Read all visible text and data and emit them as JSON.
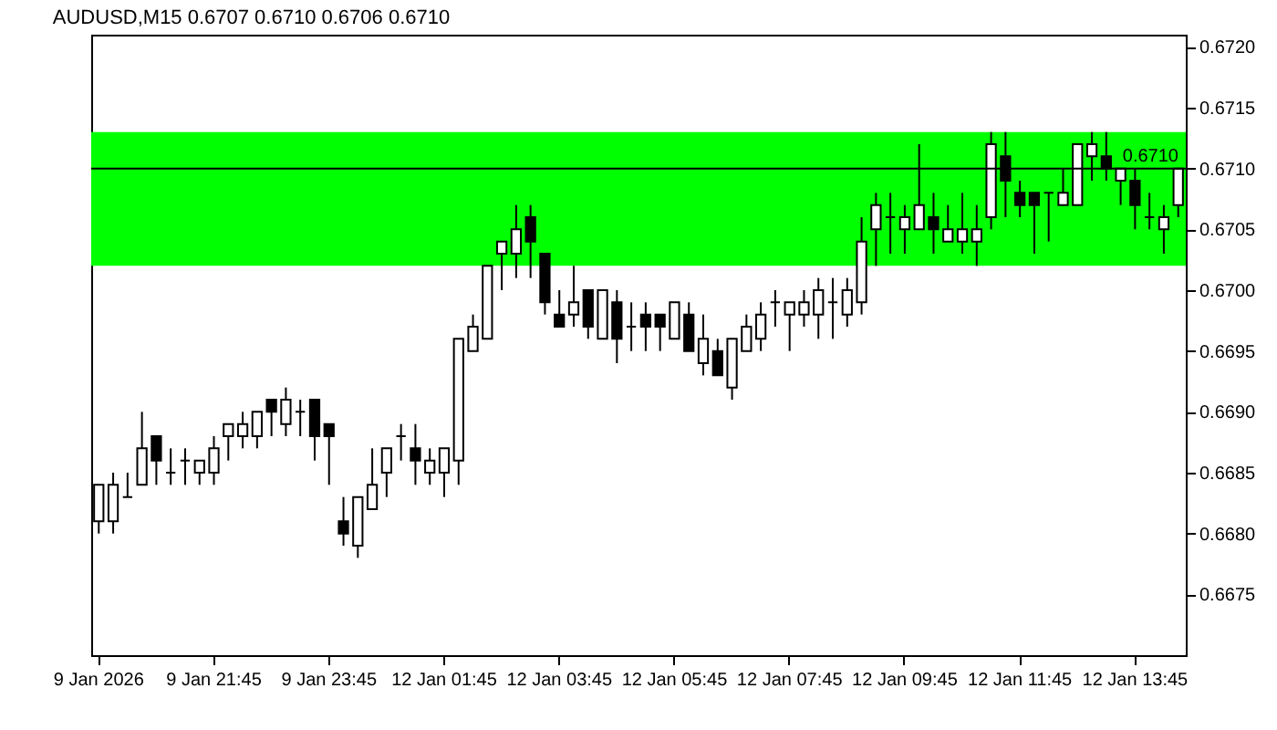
{
  "chart_data": {
    "type": "candlestick",
    "title": "AUDUSD,M15  0.6707 0.6710 0.6706 0.6710",
    "categories": [
      "9 Jan 2026",
      null,
      null,
      null,
      null,
      null,
      null,
      null,
      "9 Jan 21:45",
      null,
      null,
      null,
      null,
      null,
      null,
      null,
      "9 Jan 23:45",
      null,
      null,
      null,
      null,
      null,
      null,
      null,
      "12 Jan 01:45",
      null,
      null,
      null,
      null,
      null,
      null,
      null,
      "12 Jan 03:45",
      null,
      null,
      null,
      null,
      null,
      null,
      null,
      "12 Jan 05:45",
      null,
      null,
      null,
      null,
      null,
      null,
      null,
      "12 Jan 07:45",
      null,
      null,
      null,
      null,
      null,
      null,
      null,
      "12 Jan 09:45",
      null,
      null,
      null,
      null,
      null,
      null,
      null,
      "12 Jan 11:45",
      null,
      null,
      null,
      null,
      null,
      null,
      null,
      "12 Jan 13:45",
      null,
      null,
      null
    ],
    "ohlc": [
      [
        0.6681,
        0.6684,
        0.668,
        0.6684
      ],
      [
        0.6681,
        0.6685,
        0.668,
        0.6684
      ],
      [
        0.6683,
        0.6685,
        0.6683,
        0.6683
      ],
      [
        0.6684,
        0.669,
        0.6684,
        0.6687
      ],
      [
        0.6688,
        0.6688,
        0.6684,
        0.6686
      ],
      [
        0.6685,
        0.6687,
        0.6684,
        0.6685
      ],
      [
        0.6686,
        0.6687,
        0.6684,
        0.6686
      ],
      [
        0.6685,
        0.6686,
        0.6684,
        0.6686
      ],
      [
        0.6685,
        0.6688,
        0.6684,
        0.6687
      ],
      [
        0.6688,
        0.6689,
        0.6686,
        0.6689
      ],
      [
        0.6688,
        0.669,
        0.6687,
        0.6689
      ],
      [
        0.6688,
        0.669,
        0.6687,
        0.669
      ],
      [
        0.6691,
        0.6691,
        0.6688,
        0.669
      ],
      [
        0.6689,
        0.6692,
        0.6688,
        0.6691
      ],
      [
        0.669,
        0.6691,
        0.6688,
        0.669
      ],
      [
        0.6691,
        0.6691,
        0.6686,
        0.6688
      ],
      [
        0.6689,
        0.6689,
        0.6684,
        0.6688
      ],
      [
        0.6681,
        0.6683,
        0.6679,
        0.668
      ],
      [
        0.6679,
        0.6683,
        0.6678,
        0.6683
      ],
      [
        0.6682,
        0.6687,
        0.6682,
        0.6684
      ],
      [
        0.6685,
        0.6687,
        0.6683,
        0.6687
      ],
      [
        0.6688,
        0.6689,
        0.6686,
        0.6688
      ],
      [
        0.6687,
        0.6689,
        0.6684,
        0.6686
      ],
      [
        0.6685,
        0.6687,
        0.6684,
        0.6686
      ],
      [
        0.6685,
        0.6687,
        0.6683,
        0.6687
      ],
      [
        0.6686,
        0.6696,
        0.6684,
        0.6696
      ],
      [
        0.6695,
        0.6698,
        0.6695,
        0.6697
      ],
      [
        0.6696,
        0.6702,
        0.6696,
        0.6702
      ],
      [
        0.6703,
        0.6704,
        0.67,
        0.6704
      ],
      [
        0.6703,
        0.6707,
        0.6701,
        0.6705
      ],
      [
        0.6706,
        0.6707,
        0.6701,
        0.6704
      ],
      [
        0.6703,
        0.6703,
        0.6698,
        0.6699
      ],
      [
        0.6698,
        0.67,
        0.6697,
        0.6697
      ],
      [
        0.6698,
        0.6702,
        0.6697,
        0.6699
      ],
      [
        0.67,
        0.67,
        0.6696,
        0.6697
      ],
      [
        0.6696,
        0.67,
        0.6696,
        0.67
      ],
      [
        0.6699,
        0.67,
        0.6694,
        0.6696
      ],
      [
        0.6697,
        0.6699,
        0.6695,
        0.6697
      ],
      [
        0.6698,
        0.6699,
        0.6695,
        0.6697
      ],
      [
        0.6698,
        0.6698,
        0.6695,
        0.6697
      ],
      [
        0.6696,
        0.6699,
        0.6696,
        0.6699
      ],
      [
        0.6698,
        0.6699,
        0.6695,
        0.6695
      ],
      [
        0.6694,
        0.6698,
        0.6693,
        0.6696
      ],
      [
        0.6695,
        0.6696,
        0.6693,
        0.6693
      ],
      [
        0.6692,
        0.6696,
        0.6691,
        0.6696
      ],
      [
        0.6695,
        0.6698,
        0.6695,
        0.6697
      ],
      [
        0.6696,
        0.6699,
        0.6695,
        0.6698
      ],
      [
        0.6699,
        0.67,
        0.6697,
        0.6699
      ],
      [
        0.6698,
        0.6699,
        0.6695,
        0.6699
      ],
      [
        0.6698,
        0.67,
        0.6697,
        0.6699
      ],
      [
        0.6698,
        0.6701,
        0.6696,
        0.67
      ],
      [
        0.6699,
        0.6701,
        0.6696,
        0.6699
      ],
      [
        0.6698,
        0.6701,
        0.6697,
        0.67
      ],
      [
        0.6699,
        0.6706,
        0.6698,
        0.6704
      ],
      [
        0.6705,
        0.6708,
        0.6702,
        0.6707
      ],
      [
        0.6706,
        0.6708,
        0.6703,
        0.6706
      ],
      [
        0.6705,
        0.6707,
        0.6703,
        0.6706
      ],
      [
        0.6705,
        0.6712,
        0.6705,
        0.6707
      ],
      [
        0.6706,
        0.6708,
        0.6703,
        0.6705
      ],
      [
        0.6704,
        0.6707,
        0.6704,
        0.6705
      ],
      [
        0.6704,
        0.6708,
        0.6703,
        0.6705
      ],
      [
        0.6704,
        0.6707,
        0.6702,
        0.6705
      ],
      [
        0.6706,
        0.6713,
        0.6705,
        0.6712
      ],
      [
        0.6711,
        0.6713,
        0.6706,
        0.6709
      ],
      [
        0.6708,
        0.6709,
        0.6706,
        0.6707
      ],
      [
        0.6708,
        0.6708,
        0.6703,
        0.6707
      ],
      [
        0.6708,
        0.6708,
        0.6704,
        0.6708
      ],
      [
        0.6707,
        0.671,
        0.6707,
        0.6708
      ],
      [
        0.6707,
        0.6712,
        0.6707,
        0.6712
      ],
      [
        0.6711,
        0.6713,
        0.6709,
        0.6712
      ],
      [
        0.6711,
        0.6713,
        0.6709,
        0.671
      ],
      [
        0.6709,
        0.671,
        0.6707,
        0.671
      ],
      [
        0.6709,
        0.671,
        0.6705,
        0.6707
      ],
      [
        0.6706,
        0.6708,
        0.6705,
        0.6706
      ],
      [
        0.6705,
        0.6707,
        0.6703,
        0.6706
      ],
      [
        0.6707,
        0.671,
        0.6706,
        0.671
      ]
    ],
    "ylim": [
      0.667,
      0.6721
    ],
    "yticks": [
      {
        "value": 0.672,
        "label": "0.6720"
      },
      0.6715,
      {
        "value": 0.671,
        "label": "0.6710"
      },
      0.6705,
      {
        "value": 0.67,
        "label": "0.6700"
      },
      0.6695,
      {
        "value": 0.669,
        "label": "0.6690"
      },
      0.6685,
      {
        "value": 0.668,
        "label": "0.6680"
      },
      0.6675
    ],
    "bands": [
      {
        "axis": "y",
        "from": 0.6702,
        "to": 0.6713,
        "color": "#00ff00"
      }
    ],
    "ref_lines": [
      {
        "axis": "y",
        "value": 0.671,
        "label": "0.6710",
        "color": "#000000"
      }
    ]
  }
}
